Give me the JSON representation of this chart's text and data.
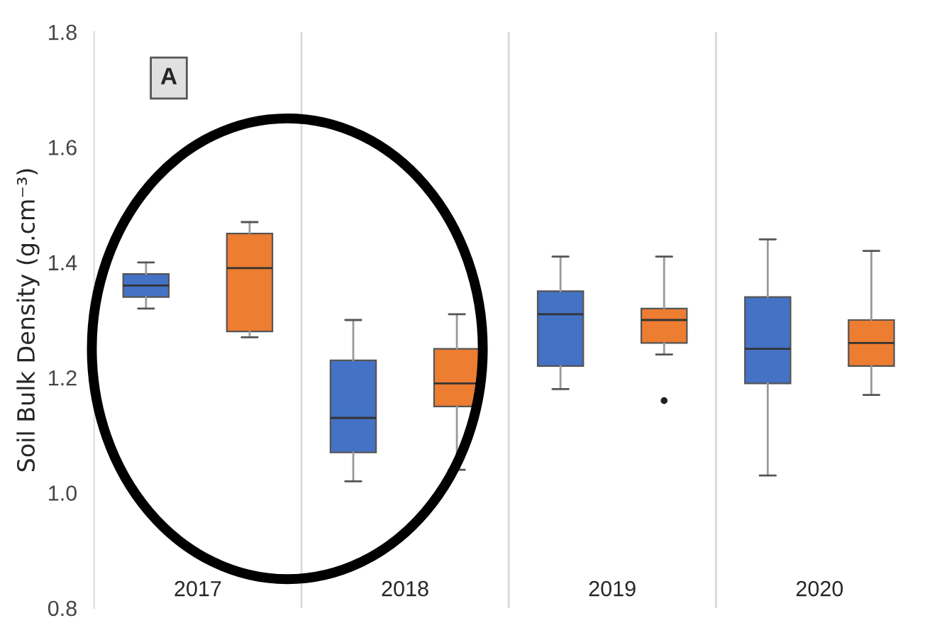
{
  "chart_data": {
    "type": "box",
    "ylabel": "Soil Bulk Density (g.cm⁻³)",
    "categories": [
      "2017",
      "2018",
      "2019",
      "2020"
    ],
    "annotations": [
      "A"
    ],
    "ylim": [
      0.8,
      1.8
    ],
    "yticks": [
      {
        "value": 0.8,
        "label": "0.8"
      },
      {
        "value": 1.0,
        "label": "1.0"
      },
      {
        "value": 1.2,
        "label": "1.2"
      },
      {
        "value": 1.4,
        "label": "1.4"
      },
      {
        "value": 1.6,
        "label": "1.6"
      },
      {
        "value": 1.8,
        "label": "1.8"
      }
    ],
    "grid": "x",
    "legend": false,
    "series": [
      {
        "color": "#4472c4",
        "boxes": [
          {
            "low": 1.32,
            "q1": 1.34,
            "median": 1.36,
            "q3": 1.38,
            "high": 1.4
          },
          {
            "low": 1.02,
            "q1": 1.07,
            "median": 1.13,
            "q3": 1.23,
            "high": 1.3
          },
          {
            "low": 1.18,
            "q1": 1.22,
            "median": 1.31,
            "q3": 1.35,
            "high": 1.41
          },
          {
            "low": 1.03,
            "q1": 1.19,
            "median": 1.25,
            "q3": 1.34,
            "high": 1.44
          }
        ]
      },
      {
        "color": "#ed7d31",
        "boxes": [
          {
            "low": 1.27,
            "q1": 1.28,
            "median": 1.39,
            "q3": 1.45,
            "high": 1.47
          },
          {
            "low": 1.04,
            "q1": 1.15,
            "median": 1.19,
            "q3": 1.25,
            "high": 1.31
          },
          {
            "low": 1.24,
            "q1": 1.26,
            "median": 1.3,
            "q3": 1.32,
            "high": 1.41,
            "outliers": [
              1.16
            ]
          },
          {
            "low": 1.17,
            "q1": 1.22,
            "median": 1.26,
            "q3": 1.3,
            "high": 1.42
          }
        ]
      }
    ]
  }
}
